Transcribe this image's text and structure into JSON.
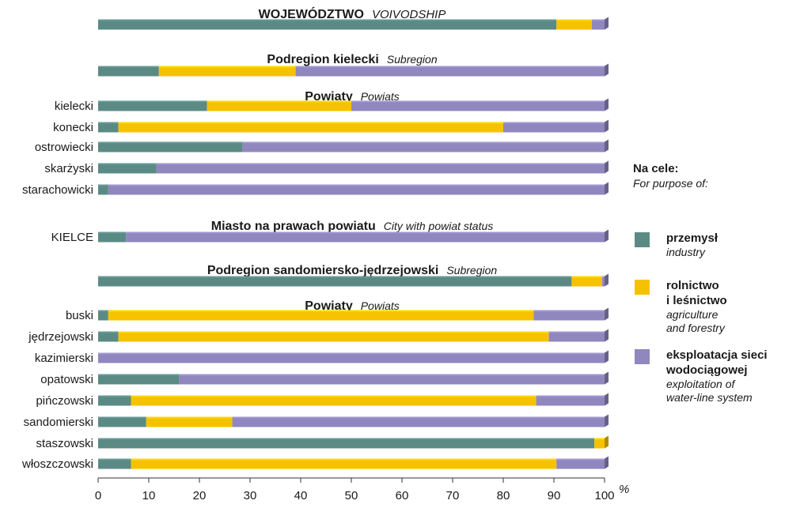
{
  "chart_data": {
    "type": "bar",
    "stacked": true,
    "orientation": "horizontal",
    "x_unit": "%",
    "xlim": [
      0,
      100
    ],
    "x_ticks": [
      "0",
      "10",
      "20",
      "30",
      "40",
      "50",
      "60",
      "70",
      "80",
      "90",
      "100"
    ],
    "grid": false,
    "legend_position": "right",
    "series": [
      {
        "key": "industry",
        "color": "#5b8a85"
      },
      {
        "key": "agriculture",
        "color": "#f6c200"
      },
      {
        "key": "waterline",
        "color": "#8f87bd"
      }
    ],
    "groups": [
      {
        "heading_pl": "WOJEWÓDZTWO",
        "heading_en": "VOIVODSHIP",
        "heading_style": "upper",
        "rows": [
          {
            "label": "",
            "values": [
              90.5,
              7,
              2.5
            ]
          }
        ]
      },
      {
        "heading_pl": "Podregion kielecki",
        "heading_en": "Subregion",
        "heading_style": "normal",
        "rows": [
          {
            "label": "",
            "values": [
              12,
              27,
              61
            ]
          }
        ]
      },
      {
        "heading_pl": "Powiaty",
        "heading_en": "Powiats",
        "heading_style": "normal",
        "rows": [
          {
            "label": "kielecki",
            "values": [
              21.5,
              28.5,
              50
            ]
          },
          {
            "label": "konecki",
            "values": [
              4,
              76,
              20
            ]
          },
          {
            "label": "ostrowiecki",
            "values": [
              28.5,
              0,
              71.5
            ]
          },
          {
            "label": "skarżyski",
            "values": [
              11.5,
              0,
              88.5
            ]
          },
          {
            "label": "starachowicki",
            "values": [
              2,
              0,
              98
            ]
          }
        ]
      },
      {
        "heading_pl": "Miasto na prawach powiatu",
        "heading_en": "City with powiat status",
        "heading_style": "normal",
        "rows": [
          {
            "label": "KIELCE",
            "values": [
              5.5,
              0,
              94.5
            ]
          }
        ]
      },
      {
        "heading_pl": "Podregion sandomiersko-jędrzejowski",
        "heading_en": "Subregion",
        "heading_style": "normal",
        "rows": [
          {
            "label": "",
            "values": [
              93.5,
              6,
              0.5
            ]
          }
        ]
      },
      {
        "heading_pl": "Powiaty",
        "heading_en": "Powiats",
        "heading_style": "normal",
        "rows": [
          {
            "label": "buski",
            "values": [
              2,
              84,
              14
            ]
          },
          {
            "label": "jędrzejowski",
            "values": [
              4,
              85,
              11
            ]
          },
          {
            "label": "kazimierski",
            "values": [
              0,
              0,
              100
            ]
          },
          {
            "label": "opatowski",
            "values": [
              16,
              0,
              84
            ]
          },
          {
            "label": "pińczowski",
            "values": [
              6.5,
              80,
              13.5
            ]
          },
          {
            "label": "sandomierski",
            "values": [
              9.5,
              17,
              73.5
            ]
          },
          {
            "label": "staszowski",
            "values": [
              98,
              2,
              0
            ]
          },
          {
            "label": "włoszczowski",
            "values": [
              6.5,
              84,
              9.5
            ]
          }
        ]
      }
    ]
  },
  "legend": {
    "title_pl": "Na cele:",
    "title_en": "For purpose of:",
    "items": [
      {
        "pl": [
          "przemysł"
        ],
        "en": [
          "industry"
        ],
        "color": "#5b8a85"
      },
      {
        "pl": [
          "rolnictwo",
          "i leśnictwo"
        ],
        "en": [
          "agriculture",
          "and forestry"
        ],
        "color": "#f6c200"
      },
      {
        "pl": [
          "eksploatacja sieci",
          "wodociągowej"
        ],
        "en": [
          "exploitation of",
          "water-line system"
        ],
        "color": "#8f87bd"
      }
    ]
  }
}
